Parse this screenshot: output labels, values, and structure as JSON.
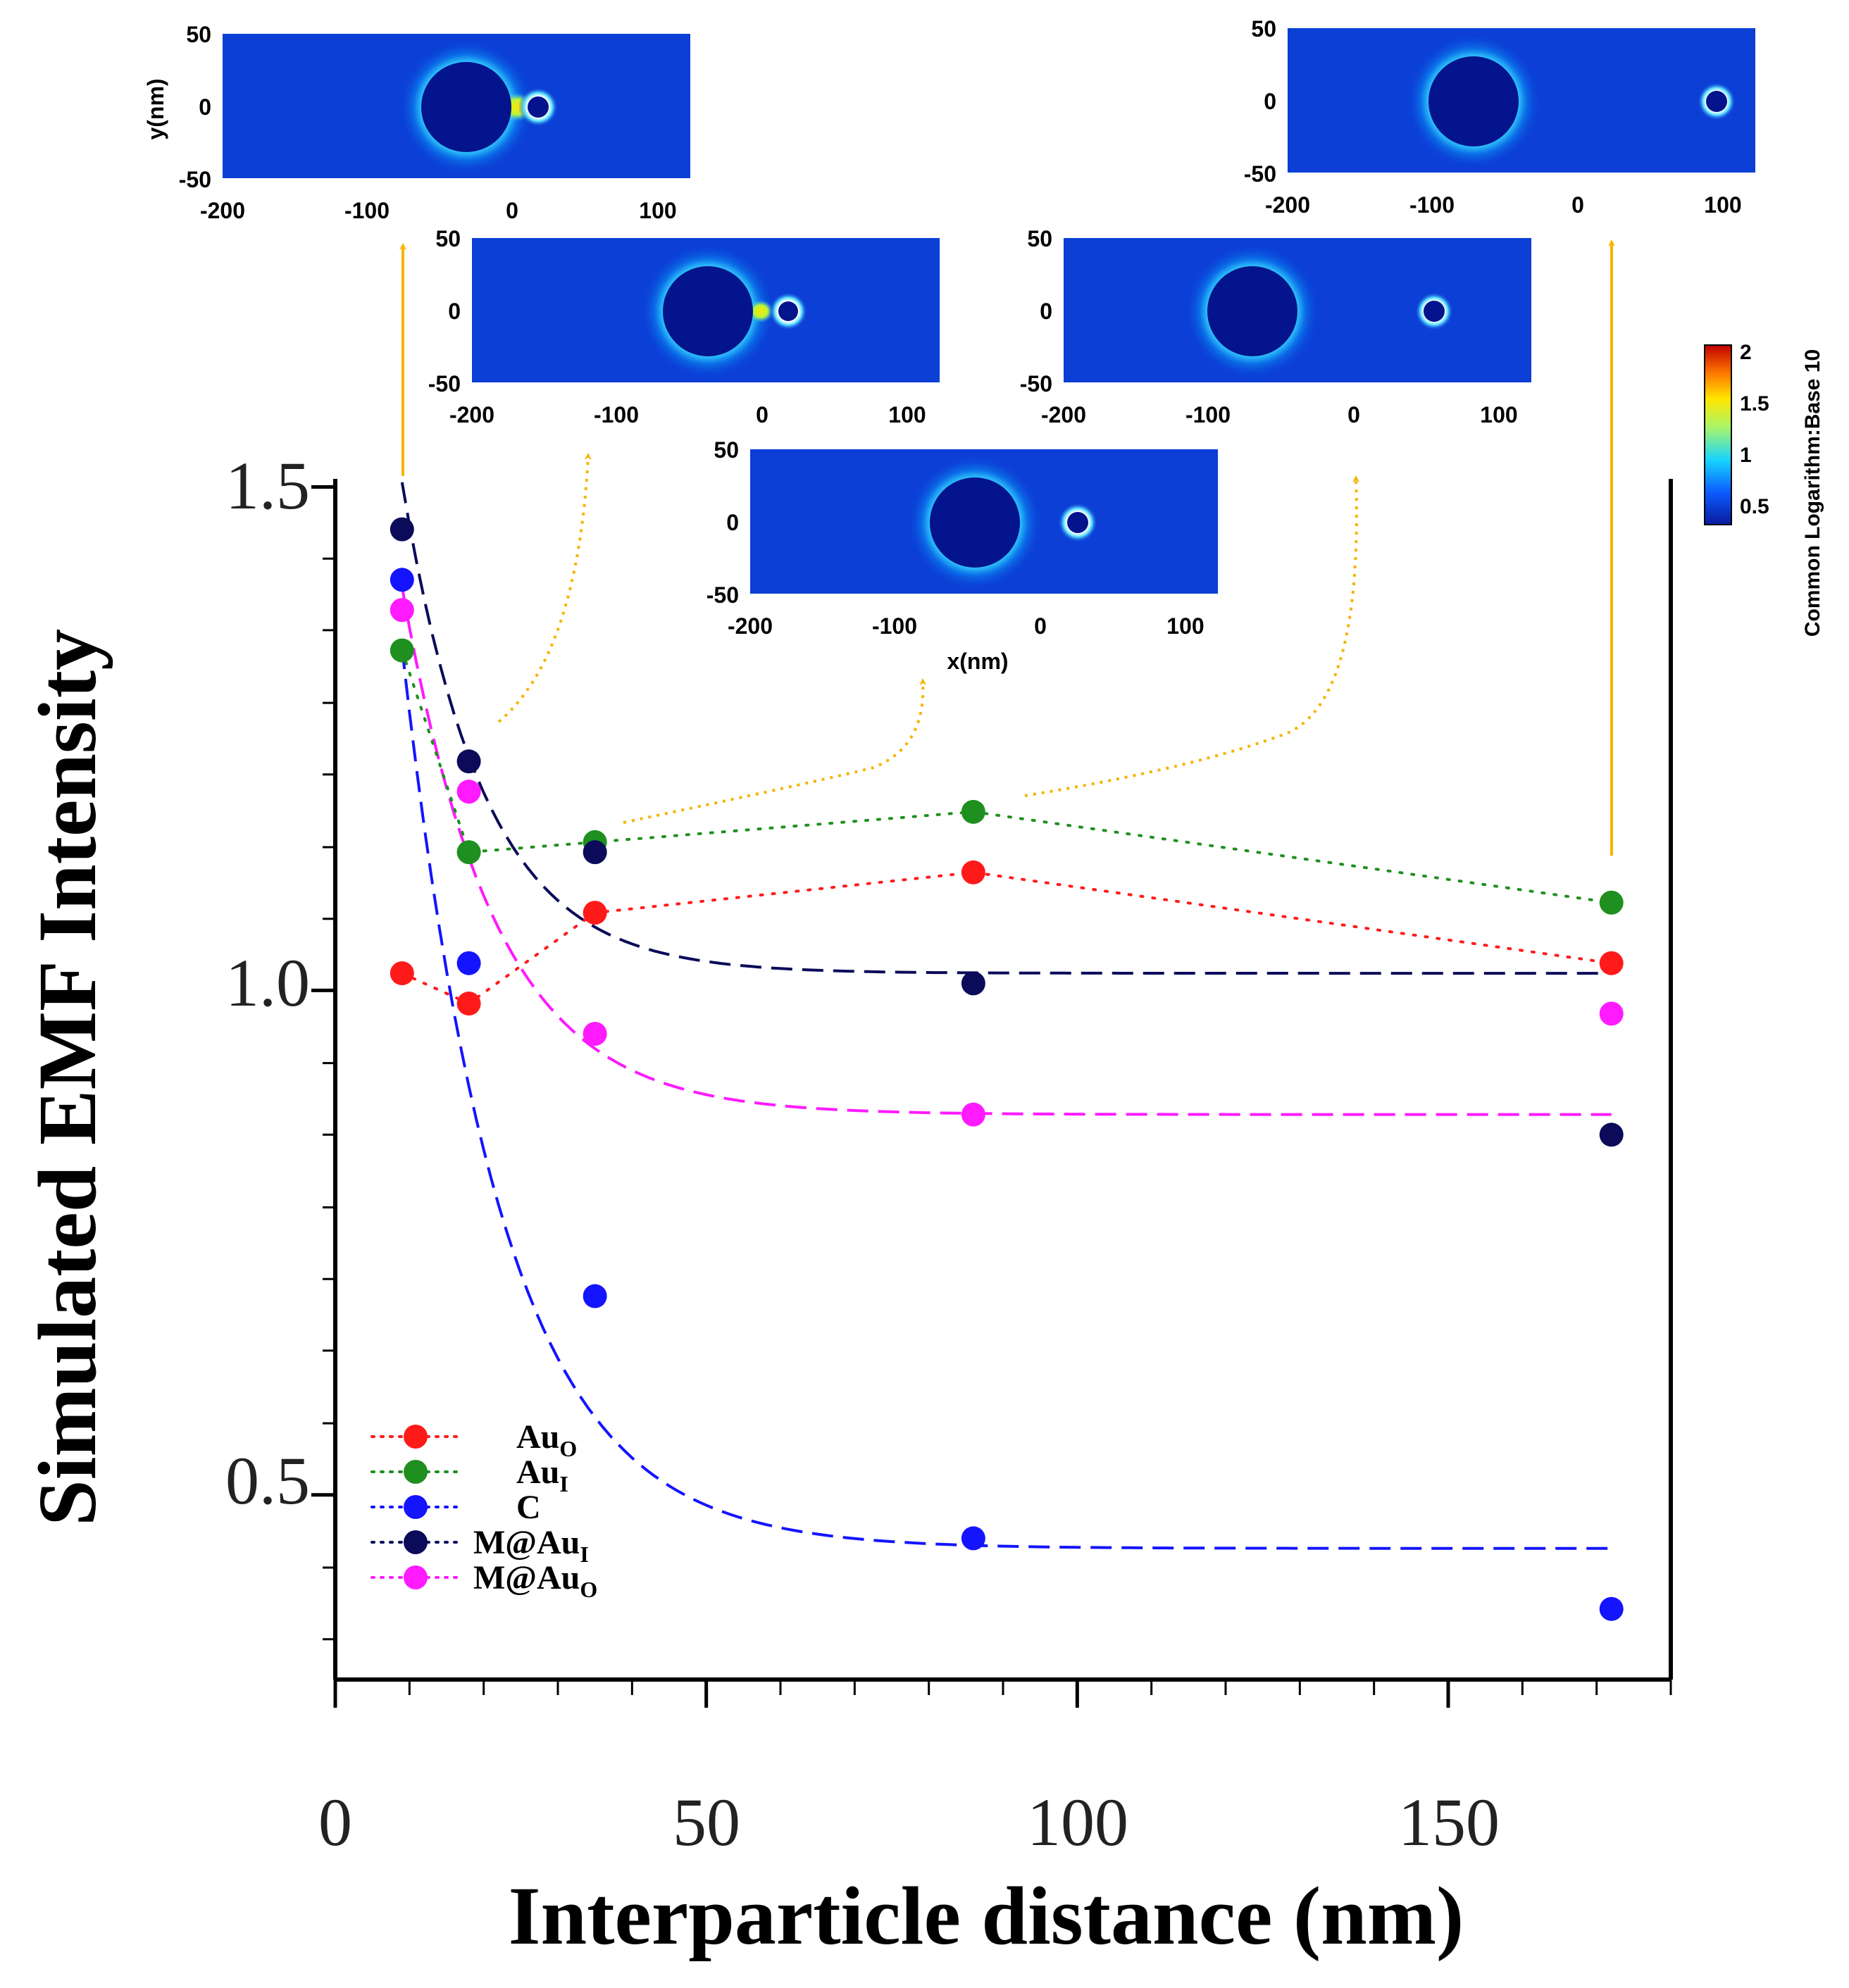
{
  "chart_data": {
    "type": "scatter",
    "title": "",
    "xlabel": "Interparticle distance (nm)",
    "ylabel": "Simulated EMF Intensity",
    "xlim": [
      0,
      180
    ],
    "ylim": [
      0.31,
      1.5
    ],
    "x_ticks": [
      "0",
      "50",
      "100",
      "150"
    ],
    "y_ticks": [
      "0.5",
      "1.0",
      "1.5"
    ],
    "x": [
      9,
      18,
      35,
      86,
      172
    ],
    "series": [
      {
        "name": "Au_O",
        "label_base": "Au",
        "label_sub": "O",
        "color": "#ff1a1a",
        "values": [
          1.01,
          0.98,
          1.07,
          1.11,
          1.02
        ],
        "fit": null
      },
      {
        "name": "Au_I",
        "label_base": "Au",
        "label_sub": "I",
        "color": "#1f8f1f",
        "values": [
          1.33,
          1.13,
          1.14,
          1.17,
          1.08
        ],
        "fit": null
      },
      {
        "name": "C",
        "label_base": "C",
        "label_sub": "",
        "color": "#1414ff",
        "values": [
          1.4,
          1.02,
          0.69,
          0.45,
          0.38
        ],
        "fit": {
          "y0": 0.44,
          "A": 1.2,
          "t": 13.5
        }
      },
      {
        "name": "M@Au_I",
        "label_base": "M@Au",
        "label_sub": "I",
        "color": "#0b0b5a",
        "values": [
          1.45,
          1.22,
          1.13,
          1.0,
          0.85
        ],
        "fit": {
          "y0": 1.01,
          "A": 0.7,
          "t": 11.0
        }
      },
      {
        "name": "M@Au_O",
        "label_base": "M@Au",
        "label_sub": "O",
        "color": "#ff1aff",
        "values": [
          1.37,
          1.19,
          0.95,
          0.87,
          0.97
        ],
        "fit": {
          "y0": 0.87,
          "A": 0.72,
          "t": 12.5
        }
      }
    ],
    "insets": {
      "x_ticks": [
        "-200",
        "-100",
        "0",
        "100"
      ],
      "y_ticks": [
        "50",
        "0",
        "-50"
      ],
      "xlabel": "x(nm)",
      "ylabel": "y(nm)",
      "panels_distance_nm": [
        9,
        18,
        35,
        86,
        172
      ]
    },
    "colorbar": {
      "label": "Common Logarithm:Base 10",
      "ticks": [
        "2",
        "1.5",
        "1",
        "0.5"
      ],
      "range": [
        0.25,
        2
      ]
    }
  }
}
